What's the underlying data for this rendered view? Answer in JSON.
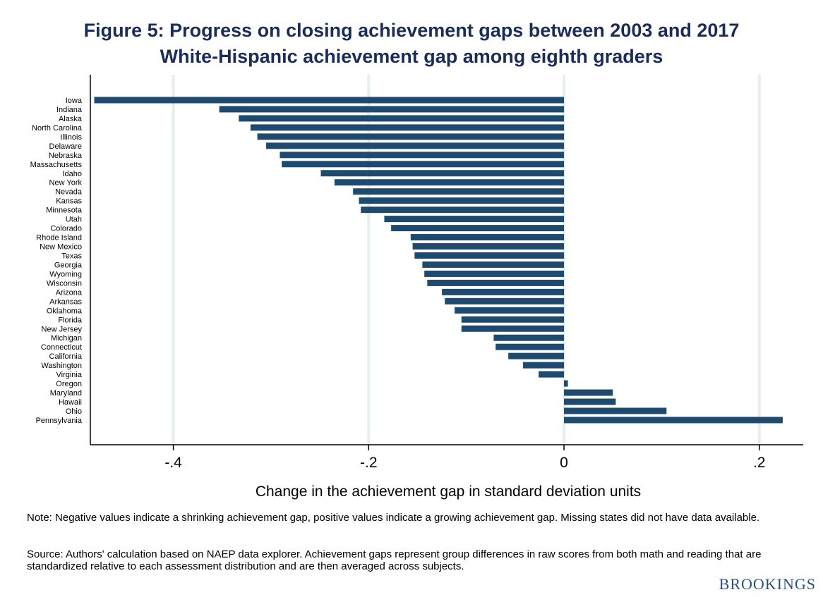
{
  "title_line1": "Figure 5: Progress on closing achievement gaps between 2003 and 2017",
  "title_line2": "White-Hispanic achievement gap among eighth graders",
  "note": "Note: Negative values indicate a shrinking achievement gap, positive values indicate a growing achievement gap. Missing states did not have data available.",
  "source": "Source: Authors' calculation based on NAEP data explorer. Achievement gaps represent group differences in raw scores from both math and reading that are standardized relative to each assessment distribution and are then averaged across subjects.",
  "brand": "BROOKINGS",
  "colors": {
    "bar": "#1f4a70",
    "grid": "#e6eeee",
    "title": "#1a2d5a"
  },
  "chart_data": {
    "type": "bar",
    "orientation": "horizontal",
    "xlabel": "Change in the achievement gap in standard deviation units",
    "xlim": [
      -0.485,
      0.245
    ],
    "xticks": [
      -0.4,
      -0.2,
      0,
      0.2
    ],
    "xtick_labels": [
      "-.4",
      "-.2",
      "0",
      ".2"
    ],
    "grid": true,
    "categories": [
      "Iowa",
      "Indiana",
      "Alaska",
      "North Carolina",
      "Illinois",
      "Delaware",
      "Nebraska",
      "Massachusetts",
      "Idaho",
      "New York",
      "Nevada",
      "Kansas",
      "Minnesota",
      "Utah",
      "Colorado",
      "Rhode Island",
      "New Mexico",
      "Texas",
      "Georgia",
      "Wyoming",
      "Wisconsin",
      "Arizona",
      "Arkansas",
      "Oklahoma",
      "Florida",
      "New Jersey",
      "Michigan",
      "Connecticut",
      "California",
      "Washington",
      "Virginia",
      "Oregon",
      "Maryland",
      "Hawaii",
      "Ohio",
      "Pennsylvania"
    ],
    "values": [
      -0.481,
      -0.353,
      -0.333,
      -0.321,
      -0.314,
      -0.305,
      -0.291,
      -0.289,
      -0.249,
      -0.235,
      -0.216,
      -0.21,
      -0.208,
      -0.184,
      -0.177,
      -0.157,
      -0.155,
      -0.153,
      -0.145,
      -0.143,
      -0.14,
      -0.125,
      -0.122,
      -0.112,
      -0.105,
      -0.105,
      -0.072,
      -0.07,
      -0.057,
      -0.042,
      -0.026,
      0.004,
      0.05,
      0.053,
      0.105,
      0.224
    ]
  }
}
